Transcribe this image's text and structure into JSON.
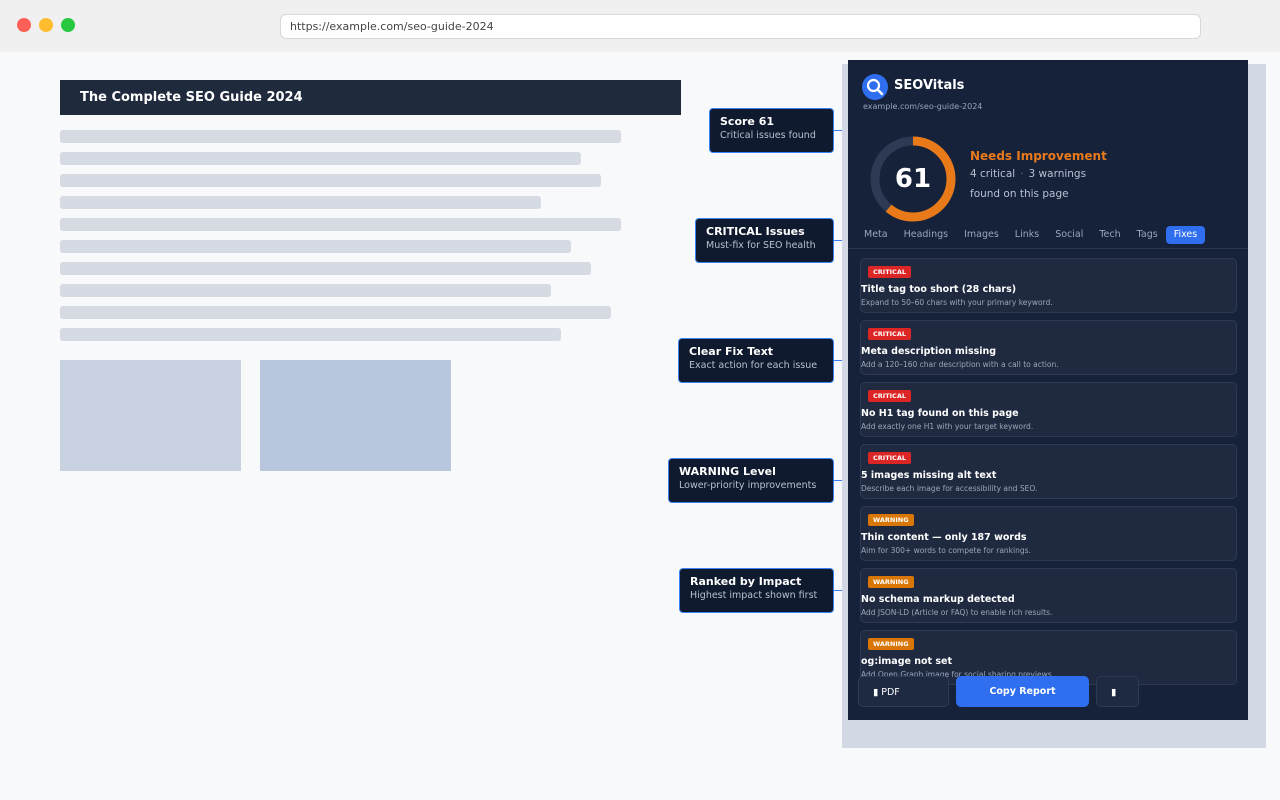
{
  "browser": {
    "url": "https://example.com/seo-guide-2024"
  },
  "page": {
    "title": "The Complete SEO Guide 2024"
  },
  "callouts": [
    {
      "title": "Score 61",
      "subtitle": "Critical issues found"
    },
    {
      "title": "CRITICAL Issues",
      "subtitle": "Must-fix for SEO health"
    },
    {
      "title": "Clear Fix Text",
      "subtitle": "Exact action for each issue"
    },
    {
      "title": "WARNING Level",
      "subtitle": "Lower-priority improvements"
    },
    {
      "title": "Ranked by Impact",
      "subtitle": "Highest impact shown first"
    }
  ],
  "panel": {
    "brand": "SEOVitals",
    "site": "example.com/seo-guide-2024",
    "score": "61",
    "score_fraction": 0.61,
    "status": "Needs Improvement",
    "critical_count": "4 critical",
    "separator": "·",
    "warning_count": "3 warnings",
    "found_text": "found on this page",
    "tabs": [
      "Meta",
      "Headings",
      "Images",
      "Links",
      "Social",
      "Tech",
      "Tags",
      "Fixes"
    ],
    "active_tab": "Fixes",
    "issues": [
      {
        "level": "CRITICAL",
        "title": "Title tag too short (28 chars)",
        "desc": "Expand to 50–60 chars with your primary keyword."
      },
      {
        "level": "CRITICAL",
        "title": "Meta description missing",
        "desc": "Add a 120–160 char description with a call to action."
      },
      {
        "level": "CRITICAL",
        "title": "No H1 tag found on this page",
        "desc": "Add exactly one H1 with your target keyword."
      },
      {
        "level": "CRITICAL",
        "title": "5 images missing alt text",
        "desc": "Describe each image for accessibility and SEO."
      },
      {
        "level": "WARNING",
        "title": "Thin content — only 187 words",
        "desc": "Aim for 300+ words to compete for rankings."
      },
      {
        "level": "WARNING",
        "title": "No schema markup detected",
        "desc": "Add JSON-LD (Article or FAQ) to enable rich results."
      },
      {
        "level": "WARNING",
        "title": "og:image not set",
        "desc": "Add Open Graph image for social sharing previews."
      }
    ],
    "buttons": {
      "pdf": "PDF",
      "copy": "Copy Report",
      "more": ""
    }
  },
  "colors": {
    "accent": "#2f6fef",
    "critical": "#dc2626",
    "warning": "#d97706",
    "panel_bg": "#16213a"
  }
}
